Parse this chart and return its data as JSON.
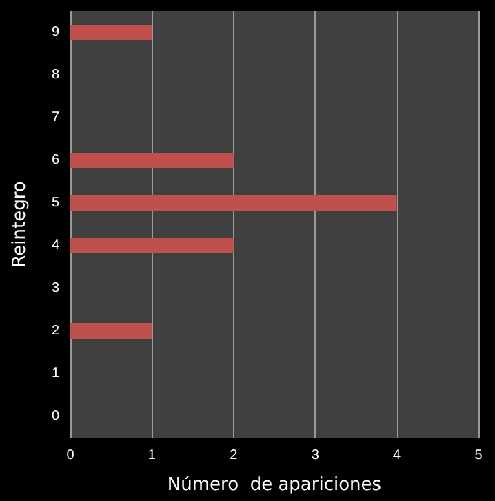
{
  "chart_data": {
    "type": "bar",
    "orientation": "horizontal",
    "xlabel": "Número  de apariciones",
    "ylabel": "Reintegro",
    "categories": [
      "9",
      "8",
      "7",
      "6",
      "5",
      "4",
      "3",
      "2",
      "1",
      "0"
    ],
    "values": [
      1,
      0,
      0,
      2,
      4,
      2,
      0,
      1,
      0,
      0
    ],
    "color": "#c0504d",
    "xlim": [
      0,
      5
    ],
    "xticks": [
      0,
      1,
      2,
      3,
      4,
      5
    ],
    "grid": "x"
  }
}
